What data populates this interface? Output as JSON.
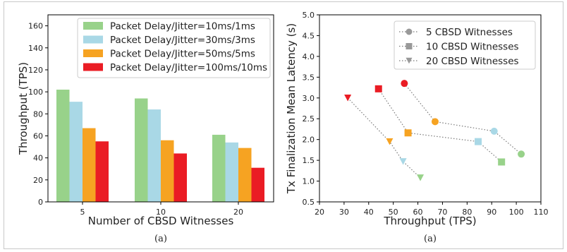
{
  "chart_data": [
    {
      "type": "bar",
      "categories": [
        "5",
        "10",
        "20"
      ],
      "series": [
        {
          "name": "Packet Delay/Jitter=10ms/1ms",
          "color": "#98d28a",
          "values": [
            102,
            94,
            61
          ]
        },
        {
          "name": "Packet Delay/Jitter=30ms/3ms",
          "color": "#a9d8e6",
          "values": [
            91,
            84,
            54
          ]
        },
        {
          "name": "Packet Delay/Jitter=50ms/5ms",
          "color": "#f6a322",
          "values": [
            67,
            56,
            49
          ]
        },
        {
          "name": "Packet Delay/Jitter=100ms/10ms",
          "color": "#ea1c24",
          "values": [
            55,
            44,
            31
          ]
        }
      ],
      "xlabel": "Number of CBSD Witnesses",
      "ylabel": "Throughput (TPS)",
      "ylim": [
        0,
        170
      ],
      "yticks": [
        "0",
        "20",
        "40",
        "60",
        "80",
        "100",
        "120",
        "140",
        "160"
      ],
      "legend_position": "top-right",
      "caption": "(a)"
    },
    {
      "type": "scatter",
      "series": [
        {
          "name": "5 CBSD Witnesses",
          "marker": "circle",
          "points": [
            [
              54.5,
              3.35
            ],
            [
              67,
              2.43
            ],
            [
              91,
              2.2
            ],
            [
              102,
              1.65
            ]
          ],
          "colors": [
            "#ea1c24",
            "#f6a322",
            "#a9d8e6",
            "#98d28a"
          ]
        },
        {
          "name": "10 CBSD Witnesses",
          "marker": "square",
          "points": [
            [
              44,
              3.22
            ],
            [
              56,
              2.16
            ],
            [
              84.5,
              1.95
            ],
            [
              94,
              1.46
            ]
          ],
          "colors": [
            "#ea1c24",
            "#f6a322",
            "#a9d8e6",
            "#98d28a"
          ]
        },
        {
          "name": "20 CBSD Witnesses",
          "marker": "triangle-down",
          "points": [
            [
              31.5,
              3.0
            ],
            [
              48.5,
              1.95
            ],
            [
              54,
              1.47
            ],
            [
              61,
              1.08
            ]
          ],
          "colors": [
            "#ea1c24",
            "#f6a322",
            "#a9d8e6",
            "#98d28a"
          ]
        }
      ],
      "xlabel": "Throughput (TPS)",
      "ylabel": "Tx Finalization Mean Latency (s)",
      "xlim": [
        20,
        110
      ],
      "ylim": [
        0.5,
        5.0
      ],
      "xticks": [
        "20",
        "30",
        "40",
        "50",
        "60",
        "70",
        "80",
        "90",
        "100",
        "110"
      ],
      "yticks": [
        "0.5",
        "1.0",
        "1.5",
        "2.0",
        "2.5",
        "3.0",
        "3.5",
        "4.0",
        "4.5",
        "5.0"
      ],
      "legend_position": "top-right",
      "line_style": "dotted gray",
      "caption": "(a)"
    }
  ]
}
